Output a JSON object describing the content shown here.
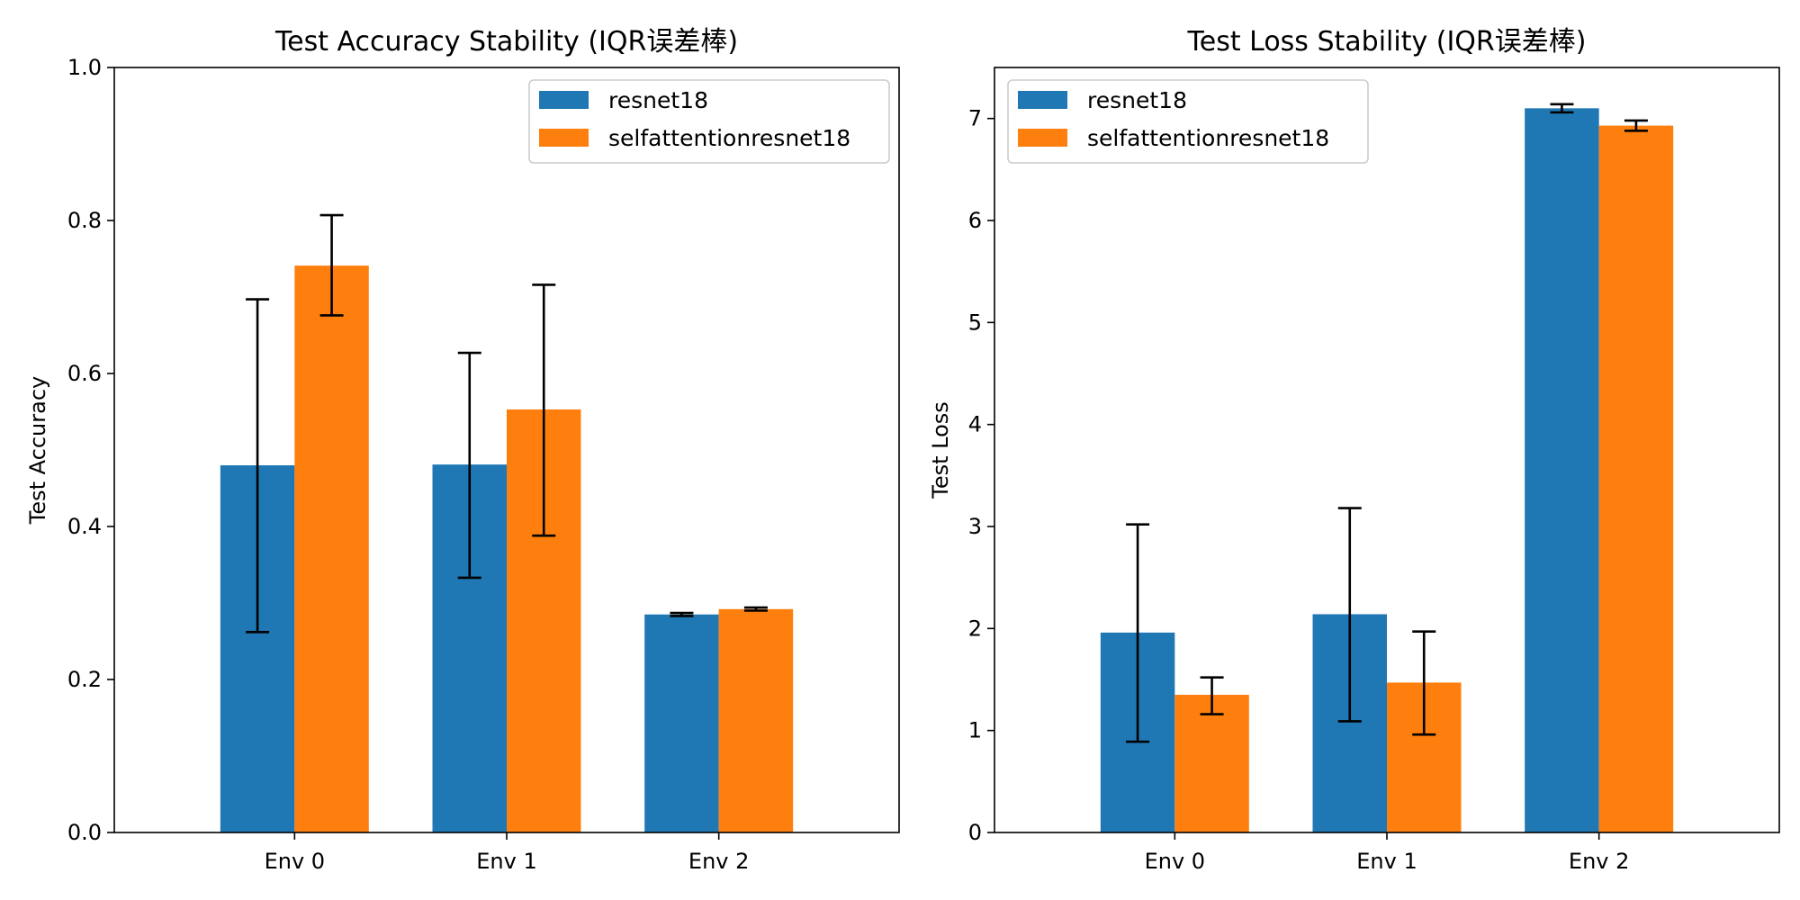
{
  "colors": {
    "resnet18": "#1f77b4",
    "selfattentionresnet18": "#ff7f0e",
    "errorbar": "#000000",
    "axes": "#000000"
  },
  "chart_data": [
    {
      "type": "bar",
      "title": "Test Accuracy Stability (IQR误差棒)",
      "xlabel": "",
      "ylabel": "Test Accuracy",
      "ylim": [
        0,
        1.0
      ],
      "yticks": [
        0.0,
        0.2,
        0.4,
        0.6,
        0.8,
        1.0
      ],
      "ytick_labels": [
        "0.0",
        "0.2",
        "0.4",
        "0.6",
        "0.8",
        "1.0"
      ],
      "categories": [
        "Env 0",
        "Env 1",
        "Env 2"
      ],
      "legend_position": "top-right",
      "grid": false,
      "series": [
        {
          "name": "resnet18",
          "values": [
            0.48,
            0.481,
            0.285
          ],
          "err_low": [
            0.262,
            0.333,
            0.283
          ],
          "err_high": [
            0.697,
            0.627,
            0.287
          ]
        },
        {
          "name": "selfattentionresnet18",
          "values": [
            0.741,
            0.553,
            0.292
          ],
          "err_low": [
            0.676,
            0.388,
            0.29
          ],
          "err_high": [
            0.807,
            0.716,
            0.294
          ]
        }
      ]
    },
    {
      "type": "bar",
      "title": "Test Loss Stability (IQR误差棒)",
      "xlabel": "",
      "ylabel": "Test Loss",
      "ylim": [
        0,
        7.5
      ],
      "yticks": [
        0,
        1,
        2,
        3,
        4,
        5,
        6,
        7
      ],
      "ytick_labels": [
        "0",
        "1",
        "2",
        "3",
        "4",
        "5",
        "6",
        "7"
      ],
      "categories": [
        "Env 0",
        "Env 1",
        "Env 2"
      ],
      "legend_position": "top-left",
      "grid": false,
      "series": [
        {
          "name": "resnet18",
          "values": [
            1.96,
            2.14,
            7.1
          ],
          "err_low": [
            0.89,
            1.09,
            7.06
          ],
          "err_high": [
            3.02,
            3.18,
            7.14
          ]
        },
        {
          "name": "selfattentionresnet18",
          "values": [
            1.35,
            1.47,
            6.93
          ],
          "err_low": [
            1.16,
            0.96,
            6.88
          ],
          "err_high": [
            1.52,
            1.97,
            6.98
          ]
        }
      ]
    }
  ]
}
